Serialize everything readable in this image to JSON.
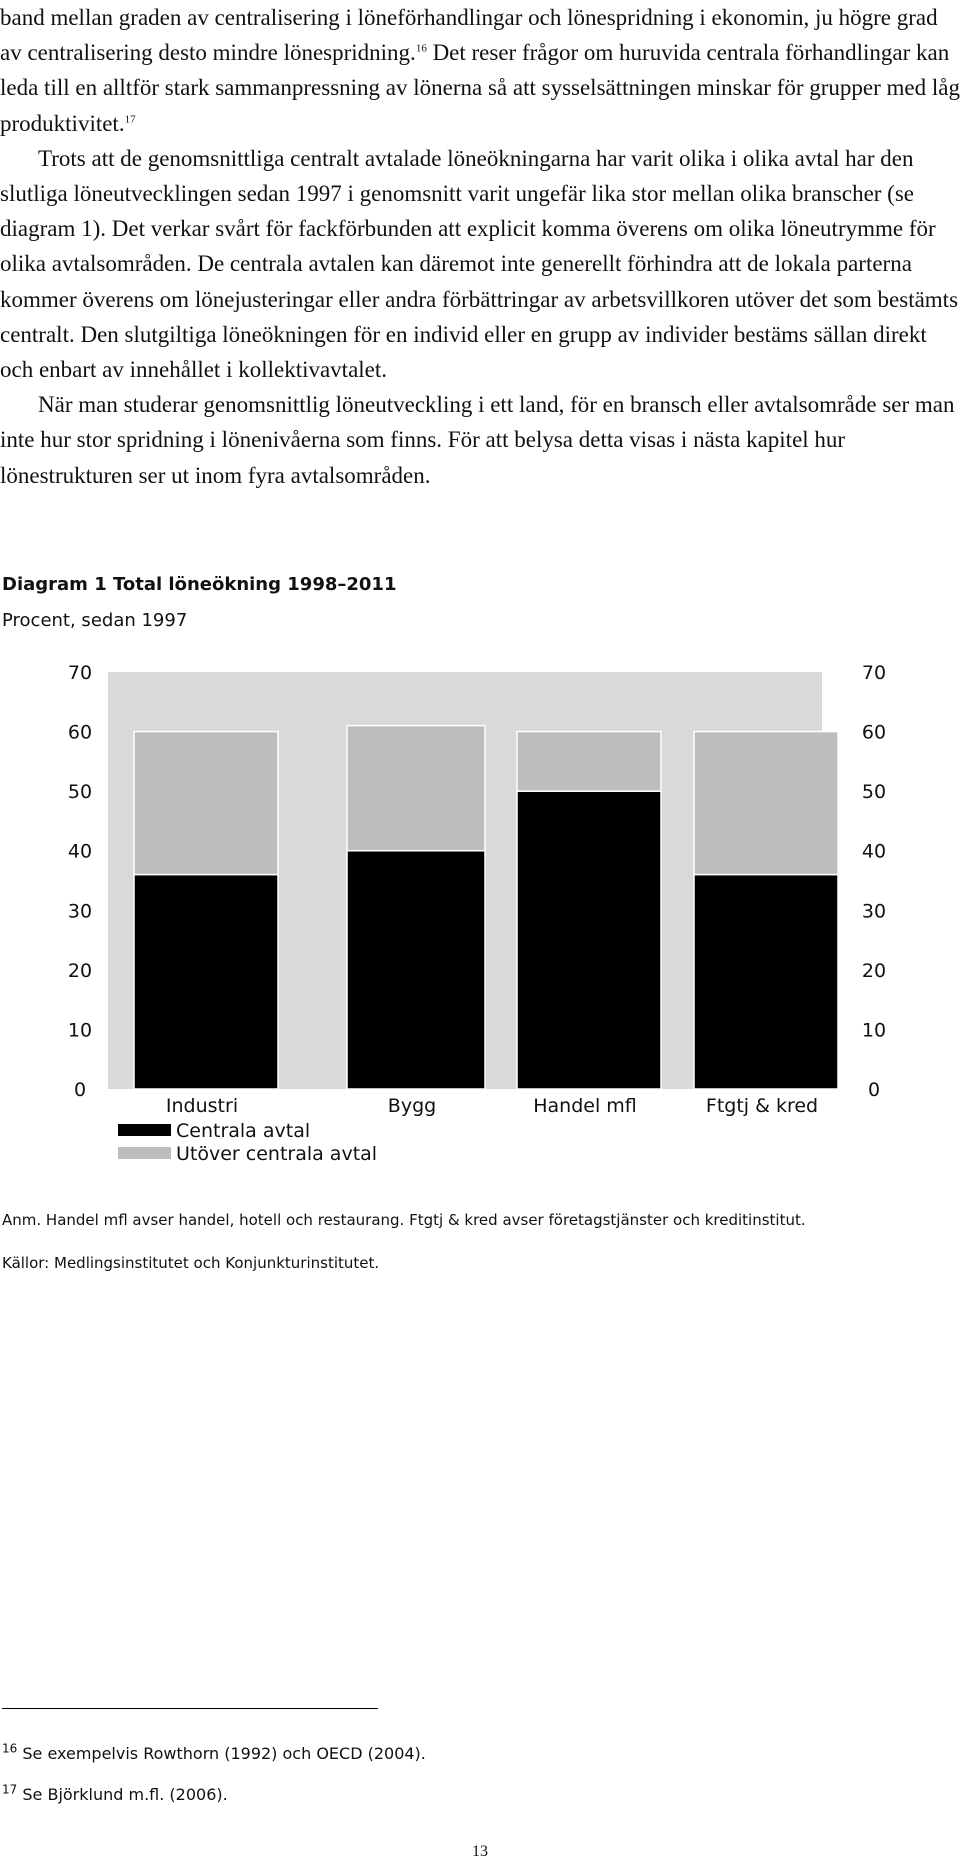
{
  "body": {
    "p1_a": "band mellan graden av centralisering i löneförhandlingar och lönespridning i ekonomin, ju högre grad av centralisering desto mindre lönespridning.",
    "p1_fn16": "16",
    "p1_b": " Det reser frågor om huruvida centrala förhandlingar kan leda till en alltför stark sammanpressning av lönerna så att sysselsättningen minskar för grupper med låg produktivitet.",
    "p1_fn17": "17",
    "p2": "Trots att de genomsnittliga centralt avtalade löneökningarna har varit olika i olika avtal har den slutliga löneutvecklingen sedan 1997 i genomsnitt varit ungefär lika stor mellan olika branscher (se diagram 1). Det verkar svårt för fackförbunden att explicit komma överens om olika löneutrymme för olika avtalsområden. De centrala avtalen kan däremot inte generellt förhindra att de lokala parterna kommer överens om lönejusteringar eller andra förbättringar av arbetsvillkoren utöver det som bestämts centralt. Den slutgiltiga löneökningen för en individ eller en grupp av individer bestäms sällan direkt och enbart av innehållet i kollektivavtalet.",
    "p3": "När man studerar genomsnittlig löneutveckling i ett land, för en bransch eller avtalsområde ser man inte hur stor spridning i lönenivåerna som finns. För att belysa detta visas i nästa kapitel hur lönestrukturen ser ut inom fyra avtalsområden."
  },
  "chart_data": {
    "type": "bar",
    "stacked": true,
    "title": "Diagram 1 Total löneökning 1998–2011",
    "subtitle": "Procent, sedan 1997",
    "categories": [
      "Industri",
      "Bygg",
      "Handel mfl",
      "Ftgtj & kred"
    ],
    "series": [
      {
        "name": "Centrala avtal",
        "values": [
          36,
          40,
          50,
          36
        ],
        "color": "#000000"
      },
      {
        "name": "Utöver centrala avtal",
        "values": [
          24,
          21,
          10,
          24
        ],
        "color": "#bdbdbd"
      }
    ],
    "ylim": [
      0,
      70
    ],
    "yticks": [
      "0",
      "10",
      "20",
      "30",
      "40",
      "50",
      "60",
      "70"
    ],
    "axes": "left-and-right",
    "plot_background": "#d9d9d9",
    "grid": false,
    "legend": "bottom-left"
  },
  "notes": {
    "anm": "Anm. Handel mfl avser handel, hotell och restaurang. Ftgtj & kred avser företagstjänster och kreditinstitut.",
    "kallor": "Källor: Medlingsinstitutet och Konjunkturinstitutet."
  },
  "footnotes": [
    {
      "num": "16",
      "text": "Se exempelvis Rowthorn (1992) och OECD (2004)."
    },
    {
      "num": "17",
      "text": "Se Björklund m.fl. (2006)."
    }
  ],
  "page_number": "13"
}
